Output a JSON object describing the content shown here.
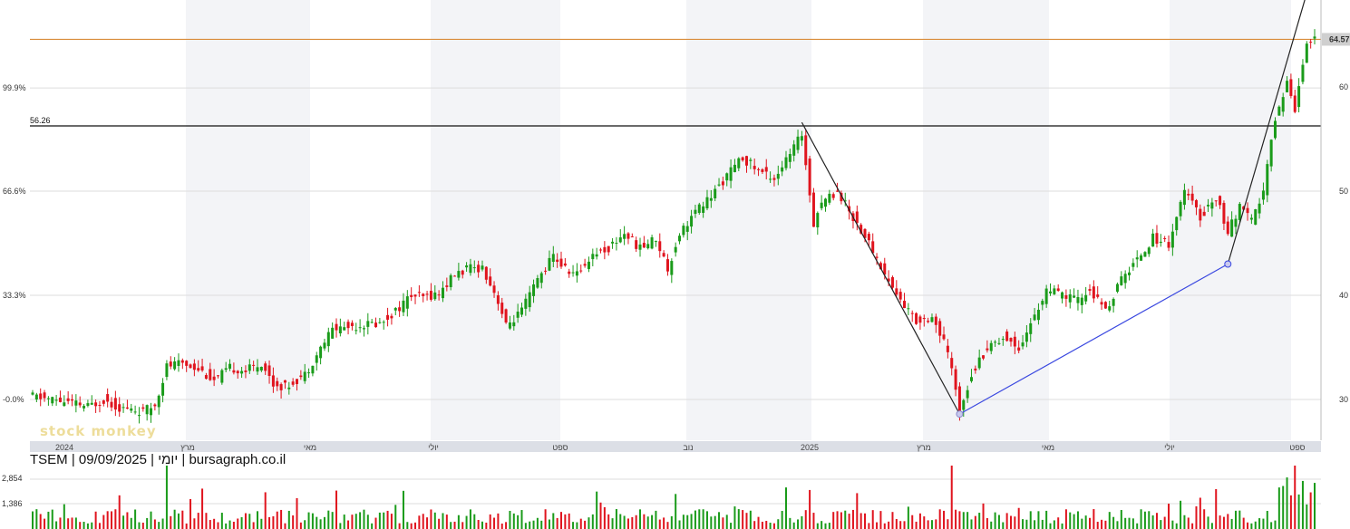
{
  "caption": "TSEM | 09/09/2025 | יומי | bursagraph.co.il",
  "watermark": "stock monkey",
  "colors": {
    "up": "#1a9b1a",
    "down": "#e0141e",
    "grid": "#dddddd",
    "band": "#f3f4f7",
    "hline_orange": "#d98c3a",
    "hline_black": "#111111",
    "trend_blue": "#3a48e0",
    "trend_black": "#222222",
    "axis_bg": "#dcdfe6",
    "price_tag": "#cfcfcf"
  },
  "price_tag": "64.57",
  "hline_label": "56.26",
  "fib_labels": [
    "99.9%",
    "66.6%",
    "33.3%",
    "-0.0%"
  ],
  "vol_labels": [
    "2,854",
    "1,386"
  ],
  "chart_data": {
    "type": "candlestick",
    "ticker": "TSEM",
    "interval": "daily",
    "y_ticks": [
      30,
      40,
      50,
      60
    ],
    "ylim": [
      25.8,
      68.6
    ],
    "last_price": 64.57,
    "horizontal_levels": [
      64.57,
      56.26
    ],
    "fib_levels": [
      {
        "label": "99.9%",
        "price": 59.9
      },
      {
        "label": "66.6%",
        "price": 50.0
      },
      {
        "label": "33.3%",
        "price": 40.0
      },
      {
        "label": "-0.0%",
        "price": 30.0
      }
    ],
    "x_labels": [
      "2024",
      "מרץ",
      "מאי",
      "יולי",
      "ספט",
      "נוב",
      "2025",
      "מרץ",
      "מאי",
      "יולי",
      "ספט"
    ],
    "close_anchors": [
      [
        0,
        30.3
      ],
      [
        8,
        29.8
      ],
      [
        14,
        29.3
      ],
      [
        18,
        30.0
      ],
      [
        22,
        29.2
      ],
      [
        28,
        28.8
      ],
      [
        31,
        29.5
      ],
      [
        34,
        33.2
      ],
      [
        38,
        33.5
      ],
      [
        42,
        33.0
      ],
      [
        46,
        31.8
      ],
      [
        50,
        33.0
      ],
      [
        54,
        32.8
      ],
      [
        58,
        33.5
      ],
      [
        61,
        31.5
      ],
      [
        64,
        31.2
      ],
      [
        69,
        32.4
      ],
      [
        72,
        34.3
      ],
      [
        76,
        36.8
      ],
      [
        80,
        37.0
      ],
      [
        84,
        37.2
      ],
      [
        88,
        37.3
      ],
      [
        92,
        38.5
      ],
      [
        96,
        40.0
      ],
      [
        99,
        39.8
      ],
      [
        103,
        40.2
      ],
      [
        107,
        42.0
      ],
      [
        110,
        42.5
      ],
      [
        114,
        42.7
      ],
      [
        118,
        39.5
      ],
      [
        120,
        37.0
      ],
      [
        124,
        38.5
      ],
      [
        128,
        41.5
      ],
      [
        132,
        43.8
      ],
      [
        135,
        42.5
      ],
      [
        138,
        42.0
      ],
      [
        142,
        44.0
      ],
      [
        146,
        44.5
      ],
      [
        150,
        46.0
      ],
      [
        154,
        44.5
      ],
      [
        158,
        45.5
      ],
      [
        161,
        42.5
      ],
      [
        164,
        46.0
      ],
      [
        168,
        48.0
      ],
      [
        172,
        49.5
      ],
      [
        176,
        51.5
      ],
      [
        180,
        53.2
      ],
      [
        184,
        52.0
      ],
      [
        188,
        51.3
      ],
      [
        192,
        53.5
      ],
      [
        195,
        55.5
      ],
      [
        198,
        47.0
      ],
      [
        200,
        49.0
      ],
      [
        204,
        50.0
      ],
      [
        208,
        47.5
      ],
      [
        212,
        45.0
      ],
      [
        216,
        42.0
      ],
      [
        220,
        39.5
      ],
      [
        224,
        37.5
      ],
      [
        228,
        38.0
      ],
      [
        232,
        34.5
      ],
      [
        235,
        29.0
      ],
      [
        238,
        32.5
      ],
      [
        242,
        35.0
      ],
      [
        246,
        36.0
      ],
      [
        250,
        35.0
      ],
      [
        254,
        38.0
      ],
      [
        257,
        40.5
      ],
      [
        261,
        40.0
      ],
      [
        265,
        39.5
      ],
      [
        268,
        40.5
      ],
      [
        272,
        38.5
      ],
      [
        276,
        41.5
      ],
      [
        280,
        43.5
      ],
      [
        284,
        45.5
      ],
      [
        288,
        45.0
      ],
      [
        292,
        50.0
      ],
      [
        296,
        47.5
      ],
      [
        300,
        49.5
      ],
      [
        303,
        46.0
      ],
      [
        306,
        48.5
      ],
      [
        309,
        47.0
      ],
      [
        312,
        50.0
      ],
      [
        315,
        57.0
      ],
      [
        318,
        60.5
      ],
      [
        320,
        58.0
      ],
      [
        323,
        64.5
      ],
      [
        325,
        64.57
      ]
    ],
    "volume_ticks": [
      "2,854",
      "1,386"
    ]
  }
}
